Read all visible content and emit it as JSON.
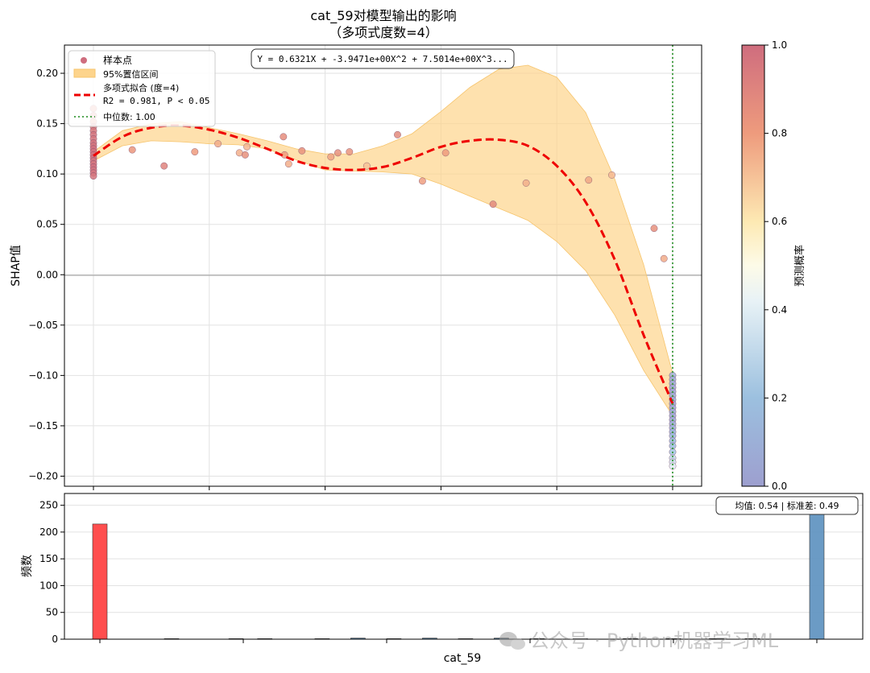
{
  "colors": {
    "band": "#fdd48c",
    "fit": "#ee0000",
    "median": "#3a9a3a",
    "hist_left": "#ff4444",
    "hist_right": "#5b8fbd",
    "grid": "#e2e2e2"
  },
  "chart_data": [
    {
      "type": "scatter",
      "title": "cat_59对模型输出的影响",
      "subtitle": "（多项式度数=4）",
      "xlabel": "",
      "ylabel": "SHAP值",
      "xlim": [
        0,
        1
      ],
      "ylim": [
        -0.21,
        0.228
      ],
      "yticks": [
        -0.2,
        -0.15,
        -0.1,
        -0.05,
        0.0,
        0.05,
        0.1,
        0.15,
        0.2
      ],
      "ytick_labels": [
        "−0.20",
        "−0.15",
        "−0.10",
        "−0.05",
        "0.00",
        "0.05",
        "0.10",
        "0.15",
        "0.20"
      ],
      "xticks": [
        0,
        0.2,
        0.4,
        0.6,
        0.8,
        1.0
      ],
      "grid": true,
      "legend_position": "upper-left",
      "legend": [
        {
          "label": "样本点",
          "kind": "marker"
        },
        {
          "label": "95%置信区间",
          "kind": "patch"
        },
        {
          "label": "多项式拟合 (度=4)",
          "label2": "R2 = 0.981, P < 0.05",
          "kind": "dashed"
        },
        {
          "label": "中位数: 1.00",
          "kind": "dotted"
        }
      ],
      "equation": "Y = 0.6321X + -3.9471e+00X^2 + 7.5014e+00X^3...",
      "median_x": 1.0,
      "colorbar": {
        "label": "预测概率",
        "range": [
          0,
          1
        ],
        "ticks": [
          "0.0",
          "0.2",
          "0.4",
          "0.6",
          "0.8",
          "1.0"
        ]
      },
      "points": [
        {
          "x": 0.0,
          "y": 0.165,
          "p": 0.88
        },
        {
          "x": 0.0,
          "y": 0.158,
          "p": 0.9
        },
        {
          "x": 0.0,
          "y": 0.152,
          "p": 0.85
        },
        {
          "x": 0.0,
          "y": 0.147,
          "p": 0.92
        },
        {
          "x": 0.0,
          "y": 0.143,
          "p": 0.95
        },
        {
          "x": 0.0,
          "y": 0.139,
          "p": 0.97
        },
        {
          "x": 0.0,
          "y": 0.135,
          "p": 0.96
        },
        {
          "x": 0.0,
          "y": 0.131,
          "p": 0.98
        },
        {
          "x": 0.0,
          "y": 0.128,
          "p": 0.97
        },
        {
          "x": 0.0,
          "y": 0.125,
          "p": 0.99
        },
        {
          "x": 0.0,
          "y": 0.122,
          "p": 0.98
        },
        {
          "x": 0.0,
          "y": 0.119,
          "p": 0.97
        },
        {
          "x": 0.0,
          "y": 0.116,
          "p": 0.99
        },
        {
          "x": 0.0,
          "y": 0.113,
          "p": 0.98
        },
        {
          "x": 0.0,
          "y": 0.11,
          "p": 0.97
        },
        {
          "x": 0.0,
          "y": 0.107,
          "p": 0.99
        },
        {
          "x": 0.0,
          "y": 0.104,
          "p": 0.98
        },
        {
          "x": 0.0,
          "y": 0.101,
          "p": 0.97
        },
        {
          "x": 0.0,
          "y": 0.098,
          "p": 0.96
        },
        {
          "x": 0.067,
          "y": 0.124,
          "p": 0.82
        },
        {
          "x": 0.122,
          "y": 0.108,
          "p": 0.9
        },
        {
          "x": 0.175,
          "y": 0.122,
          "p": 0.8
        },
        {
          "x": 0.215,
          "y": 0.13,
          "p": 0.76
        },
        {
          "x": 0.252,
          "y": 0.121,
          "p": 0.74
        },
        {
          "x": 0.262,
          "y": 0.119,
          "p": 0.85
        },
        {
          "x": 0.265,
          "y": 0.127,
          "p": 0.73
        },
        {
          "x": 0.328,
          "y": 0.137,
          "p": 0.86
        },
        {
          "x": 0.33,
          "y": 0.119,
          "p": 0.8
        },
        {
          "x": 0.337,
          "y": 0.11,
          "p": 0.75
        },
        {
          "x": 0.36,
          "y": 0.123,
          "p": 0.84
        },
        {
          "x": 0.41,
          "y": 0.117,
          "p": 0.78
        },
        {
          "x": 0.422,
          "y": 0.121,
          "p": 0.85
        },
        {
          "x": 0.442,
          "y": 0.122,
          "p": 0.83
        },
        {
          "x": 0.472,
          "y": 0.108,
          "p": 0.7
        },
        {
          "x": 0.525,
          "y": 0.139,
          "p": 0.87
        },
        {
          "x": 0.568,
          "y": 0.093,
          "p": 0.79
        },
        {
          "x": 0.608,
          "y": 0.121,
          "p": 0.8
        },
        {
          "x": 0.69,
          "y": 0.07,
          "p": 0.88
        },
        {
          "x": 0.747,
          "y": 0.091,
          "p": 0.75
        },
        {
          "x": 0.855,
          "y": 0.094,
          "p": 0.77
        },
        {
          "x": 0.895,
          "y": 0.099,
          "p": 0.72
        },
        {
          "x": 0.968,
          "y": 0.046,
          "p": 0.85
        },
        {
          "x": 0.985,
          "y": 0.016,
          "p": 0.76
        },
        {
          "x": 1.0,
          "y": -0.1,
          "p": 0.1
        },
        {
          "x": 1.0,
          "y": -0.104,
          "p": 0.08
        },
        {
          "x": 1.0,
          "y": -0.108,
          "p": 0.06
        },
        {
          "x": 1.0,
          "y": -0.112,
          "p": 0.05
        },
        {
          "x": 1.0,
          "y": -0.116,
          "p": 0.04
        },
        {
          "x": 1.0,
          "y": -0.12,
          "p": 0.06
        },
        {
          "x": 1.0,
          "y": -0.124,
          "p": 0.05
        },
        {
          "x": 1.0,
          "y": -0.128,
          "p": 0.03
        },
        {
          "x": 1.0,
          "y": -0.132,
          "p": 0.05
        },
        {
          "x": 1.0,
          "y": -0.136,
          "p": 0.07
        },
        {
          "x": 1.0,
          "y": -0.14,
          "p": 0.05
        },
        {
          "x": 1.0,
          "y": -0.144,
          "p": 0.06
        },
        {
          "x": 1.0,
          "y": -0.148,
          "p": 0.08
        },
        {
          "x": 1.0,
          "y": -0.152,
          "p": 0.1
        },
        {
          "x": 1.0,
          "y": -0.156,
          "p": 0.12
        },
        {
          "x": 1.0,
          "y": -0.16,
          "p": 0.14
        },
        {
          "x": 1.0,
          "y": -0.165,
          "p": 0.15
        },
        {
          "x": 1.0,
          "y": -0.17,
          "p": 0.18
        },
        {
          "x": 1.0,
          "y": -0.176,
          "p": 0.22
        },
        {
          "x": 1.0,
          "y": -0.182,
          "p": 0.3
        },
        {
          "x": 1.0,
          "y": -0.186,
          "p": 0.35
        },
        {
          "x": 1.0,
          "y": -0.19,
          "p": 0.4
        }
      ],
      "fit_x": [
        0,
        0.05,
        0.1,
        0.15,
        0.2,
        0.25,
        0.3,
        0.35,
        0.4,
        0.45,
        0.5,
        0.55,
        0.6,
        0.65,
        0.7,
        0.75,
        0.8,
        0.85,
        0.9,
        0.95,
        1.0
      ],
      "fit_y": [
        0.118,
        0.137,
        0.146,
        0.148,
        0.144,
        0.136,
        0.125,
        0.113,
        0.106,
        0.104,
        0.107,
        0.116,
        0.127,
        0.133,
        0.134,
        0.128,
        0.108,
        0.072,
        0.015,
        -0.06,
        -0.128
      ],
      "band_upper": [
        0.122,
        0.143,
        0.15,
        0.152,
        0.146,
        0.14,
        0.133,
        0.125,
        0.12,
        0.12,
        0.128,
        0.14,
        0.162,
        0.186,
        0.204,
        0.208,
        0.196,
        0.161,
        0.095,
        0.01,
        -0.098
      ],
      "band_lower": [
        0.113,
        0.128,
        0.133,
        0.132,
        0.13,
        0.129,
        0.125,
        0.114,
        0.104,
        0.103,
        0.102,
        0.1,
        0.09,
        0.078,
        0.066,
        0.054,
        0.033,
        0.004,
        -0.04,
        -0.095,
        -0.14
      ]
    },
    {
      "type": "bar",
      "xlabel": "cat_59",
      "ylabel": "频数",
      "ylim": [
        0,
        272
      ],
      "yticks": [
        0,
        50,
        100,
        150,
        200,
        250
      ],
      "stats_label": "均值: 0.54 | 标准差: 0.49",
      "bins": [
        {
          "x": 0.0,
          "count": 215,
          "c": "left"
        },
        {
          "x": 0.1,
          "count": 1,
          "c": "dark"
        },
        {
          "x": 0.19,
          "count": 1,
          "c": "dark"
        },
        {
          "x": 0.23,
          "count": 1,
          "c": "dark"
        },
        {
          "x": 0.31,
          "count": 1,
          "c": "dark"
        },
        {
          "x": 0.36,
          "count": 2,
          "c": "mid"
        },
        {
          "x": 0.41,
          "count": 1,
          "c": "mid"
        },
        {
          "x": 0.46,
          "count": 2,
          "c": "mid"
        },
        {
          "x": 0.51,
          "count": 1,
          "c": "mid"
        },
        {
          "x": 0.56,
          "count": 2,
          "c": "mid"
        },
        {
          "x": 0.61,
          "count": 1,
          "c": "mid"
        },
        {
          "x": 0.67,
          "count": 1,
          "c": "mid"
        },
        {
          "x": 0.74,
          "count": 1,
          "c": "mid"
        },
        {
          "x": 0.8,
          "count": 1,
          "c": "mid"
        },
        {
          "x": 0.86,
          "count": 1,
          "c": "mid"
        },
        {
          "x": 0.91,
          "count": 1,
          "c": "mid"
        },
        {
          "x": 1.0,
          "count": 255,
          "c": "right"
        }
      ]
    }
  ],
  "watermark": "公众号 · Python机器学习ML"
}
